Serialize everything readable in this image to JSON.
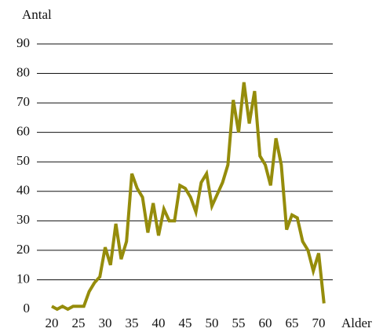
{
  "chart_data": {
    "type": "line",
    "y_axis_label": "Antal",
    "x_axis_label": "Alder",
    "x": [
      20,
      21,
      22,
      23,
      24,
      25,
      26,
      27,
      28,
      29,
      30,
      31,
      32,
      33,
      34,
      35,
      36,
      37,
      38,
      39,
      40,
      41,
      42,
      43,
      44,
      45,
      46,
      47,
      48,
      49,
      50,
      51,
      52,
      53,
      54,
      55,
      56,
      57,
      58,
      59,
      60,
      61,
      62,
      63,
      64,
      65,
      66,
      67,
      68,
      69,
      70,
      71
    ],
    "series": [
      {
        "color": "#958c0b",
        "values": [
          1,
          0,
          1,
          0,
          1,
          1,
          1,
          6,
          9,
          11,
          21,
          15,
          29,
          17,
          23,
          46,
          41,
          38,
          26,
          36,
          25,
          34,
          30,
          30,
          42,
          41,
          38,
          33,
          43,
          46,
          35,
          39,
          43,
          49,
          71,
          60,
          77,
          63,
          74,
          52,
          49,
          42,
          58,
          49,
          27,
          32,
          31,
          23,
          20,
          13,
          19,
          2
        ]
      }
    ],
    "xlim": [
      20,
      72
    ],
    "xticks": [
      20,
      25,
      30,
      35,
      40,
      45,
      50,
      55,
      60,
      65,
      70
    ],
    "ylim": [
      0,
      90
    ],
    "yticks": [
      0,
      10,
      20,
      30,
      40,
      50,
      60,
      70,
      80,
      90
    ],
    "grid": true
  }
}
